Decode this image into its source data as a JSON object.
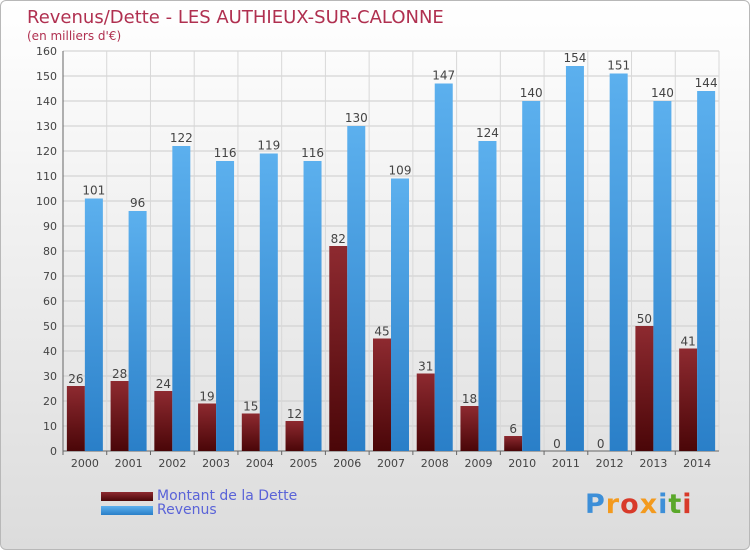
{
  "title": "Revenus/Dette - LES AUTHIEUX-SUR-CALONNE",
  "subtitle": "(en milliers d'€)",
  "logo": "Proxiti",
  "colors": {
    "debt": "#7b1a1f",
    "revenue": "#3d9ae0",
    "title": "#b03050",
    "legend_text": "#5a63d8"
  },
  "chart_data": {
    "type": "bar",
    "title": "Revenus/Dette - LES AUTHIEUX-SUR-CALONNE",
    "ylabel": "(en milliers d'€)",
    "xlabel": "",
    "categories": [
      "2000",
      "2001",
      "2002",
      "2003",
      "2004",
      "2005",
      "2006",
      "2007",
      "2008",
      "2009",
      "2010",
      "2011",
      "2012",
      "2013",
      "2014"
    ],
    "series": [
      {
        "name": "Montant de la Dette",
        "values": [
          26,
          28,
          24,
          19,
          15,
          12,
          82,
          45,
          31,
          18,
          6,
          0,
          0,
          50,
          41
        ]
      },
      {
        "name": "Revenus",
        "values": [
          101,
          96,
          122,
          116,
          119,
          116,
          130,
          109,
          147,
          124,
          140,
          154,
          151,
          140,
          144
        ]
      }
    ],
    "ylim": [
      0,
      160
    ],
    "yticks": [
      0,
      10,
      20,
      30,
      40,
      50,
      60,
      70,
      80,
      90,
      100,
      110,
      120,
      130,
      140,
      150,
      160
    ],
    "grid": true,
    "legend": "bottom-left"
  }
}
